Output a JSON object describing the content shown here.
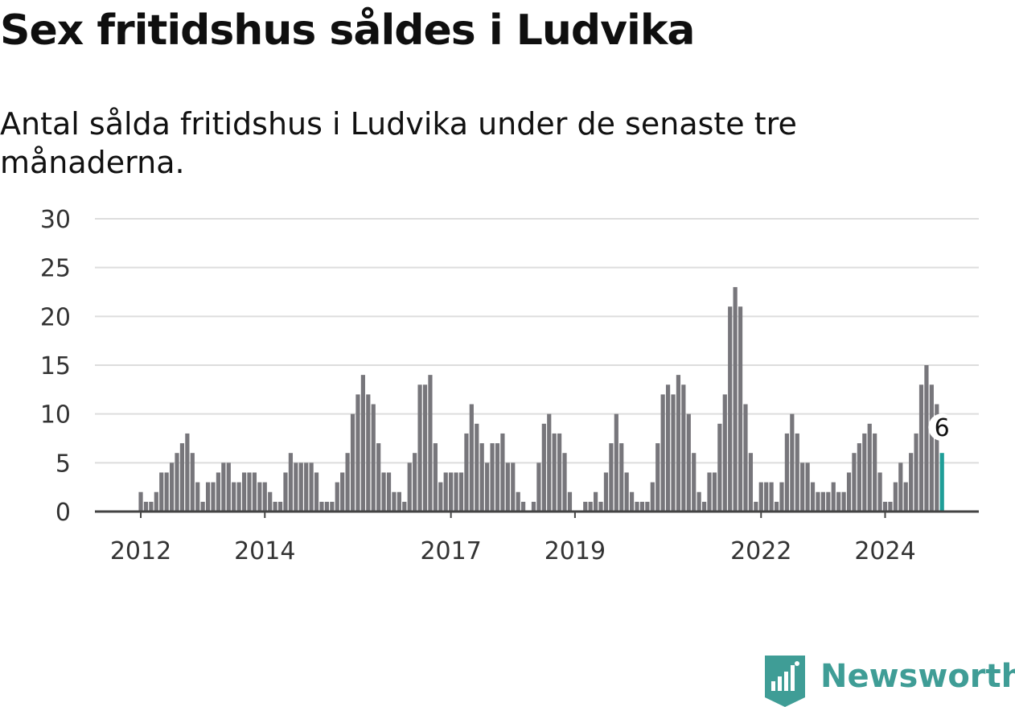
{
  "title": "Sex fritidshus såldes i Ludvika",
  "subtitle": "Antal sålda fritidshus i Ludvika under de senaste tre månaderna.",
  "brand": {
    "name": "Newsworthy",
    "icon": "newsworthy-logo-icon",
    "color": "#3f9d96"
  },
  "colors": {
    "bar": "#77767b",
    "highlight": "#1f9e98",
    "grid": "#dddddd",
    "axis": "#444444"
  },
  "chart_data": {
    "type": "bar",
    "title": "Sex fritidshus såldes i Ludvika",
    "subtitle": "Antal sålda fritidshus i Ludvika under de senaste tre månaderna.",
    "xlabel": "",
    "ylabel": "",
    "ylim": [
      0,
      30
    ],
    "yticks": [
      "0",
      "5",
      "10",
      "15",
      "20",
      "25",
      "30"
    ],
    "grid": true,
    "legend": "none",
    "x_start": "2011-12",
    "x_ticks": [
      {
        "label": "2012",
        "month": "2012-01"
      },
      {
        "label": "2014",
        "month": "2014-01"
      },
      {
        "label": "2017",
        "month": "2017-01"
      },
      {
        "label": "2019",
        "month": "2019-01"
      },
      {
        "label": "2022",
        "month": "2022-01"
      },
      {
        "label": "2024",
        "month": "2024-01"
      }
    ],
    "values": [
      0,
      2,
      1,
      1,
      2,
      4,
      4,
      5,
      6,
      7,
      8,
      6,
      3,
      1,
      3,
      3,
      4,
      5,
      5,
      3,
      3,
      4,
      4,
      4,
      3,
      3,
      2,
      1,
      1,
      4,
      6,
      5,
      5,
      5,
      5,
      4,
      1,
      1,
      1,
      3,
      4,
      6,
      10,
      12,
      14,
      12,
      11,
      7,
      4,
      4,
      2,
      2,
      1,
      5,
      6,
      13,
      13,
      14,
      7,
      3,
      4,
      4,
      4,
      4,
      8,
      11,
      9,
      7,
      5,
      7,
      7,
      8,
      5,
      5,
      2,
      1,
      0,
      1,
      5,
      9,
      10,
      8,
      8,
      6,
      2,
      0,
      0,
      1,
      1,
      2,
      1,
      4,
      7,
      10,
      7,
      4,
      2,
      1,
      1,
      1,
      3,
      7,
      12,
      13,
      12,
      14,
      13,
      10,
      6,
      2,
      1,
      4,
      4,
      9,
      12,
      21,
      23,
      21,
      11,
      6,
      1,
      3,
      3,
      3,
      1,
      3,
      8,
      10,
      8,
      5,
      5,
      3,
      2,
      2,
      2,
      3,
      2,
      2,
      4,
      6,
      7,
      8,
      9,
      8,
      4,
      1,
      1,
      3,
      5,
      3,
      6,
      8,
      13,
      15,
      13,
      11,
      6
    ],
    "highlight": {
      "label": "6",
      "value": 6
    }
  }
}
